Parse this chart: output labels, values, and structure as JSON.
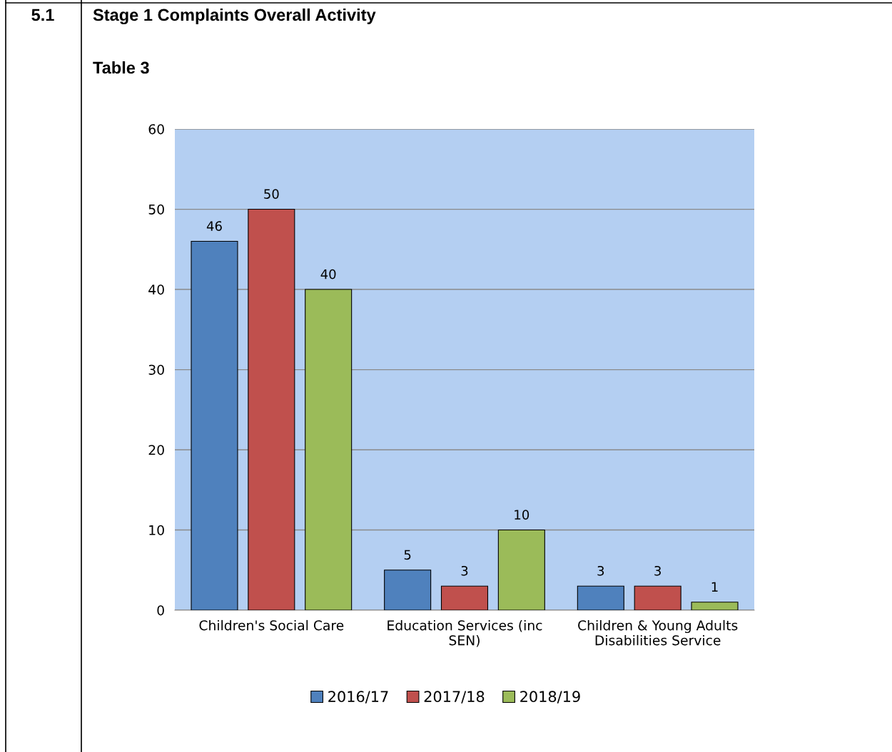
{
  "chart_data": {
    "type": "bar",
    "title": "Stage 1 Complaints Overall Activity",
    "subtitle": "Table 3",
    "annotations": [
      "5.1"
    ],
    "categories": [
      "Children's Social Care",
      "Education Services (inc\nSEN)",
      "Children & Young Adults\nDisabilities Service"
    ],
    "series": [
      {
        "name": "2016/17",
        "color": "#4f81bd",
        "values": [
          46,
          5,
          3
        ]
      },
      {
        "name": "2017/18",
        "color": "#c0504d",
        "values": [
          50,
          3,
          3
        ]
      },
      {
        "name": "2018/19",
        "color": "#9bbb59",
        "values": [
          40,
          10,
          1
        ]
      }
    ],
    "ylim": [
      0,
      60
    ],
    "yticks": [
      0,
      10,
      20,
      30,
      40,
      50,
      60
    ],
    "grid": "y",
    "legend": "bottom",
    "data_labels": true
  }
}
